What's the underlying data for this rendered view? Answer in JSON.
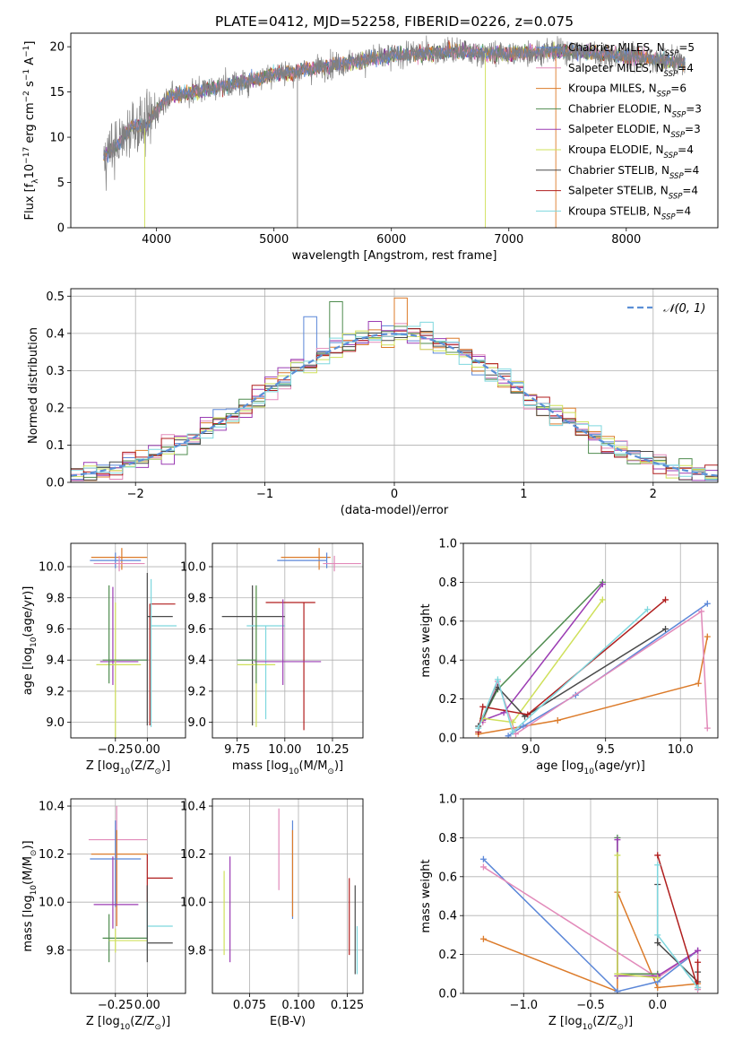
{
  "chart_data": [
    {
      "id": "spectrum",
      "type": "line",
      "title": "PLATE=0412, MJD=52258, FIBERID=0226, z=0.075",
      "xlabel": "wavelength [Angstrom, rest frame]",
      "ylabel": "Flux [f_λ10^-17 erg cm^-2 s^-1 A^-1]",
      "xlim": [
        3270,
        8780
      ],
      "ylim": [
        0,
        21.5
      ],
      "xticks": [
        4000,
        5000,
        6000,
        7000,
        8000
      ],
      "yticks": [
        0,
        5,
        10,
        15,
        20
      ],
      "legend_position": "right",
      "legend": [
        {
          "label": "Chabrier MILES",
          "nssp": "5",
          "color": "#5b87d8"
        },
        {
          "label": "Salpeter MILES",
          "nssp": "4",
          "color": "#e28aba"
        },
        {
          "label": "Kroupa MILES",
          "nssp": "6",
          "color": "#dc7b2a"
        },
        {
          "label": "Chabrier ELODIE",
          "nssp": "3",
          "color": "#4f8c4f"
        },
        {
          "label": "Salpeter ELODIE",
          "nssp": "3",
          "color": "#9b3cb3"
        },
        {
          "label": "Kroupa ELODIE",
          "nssp": "4",
          "color": "#cfe05a"
        },
        {
          "label": "Chabrier STELIB",
          "nssp": "4",
          "color": "#4a4a4a"
        },
        {
          "label": "Salpeter STELIB",
          "nssp": "4",
          "color": "#b01e1e"
        },
        {
          "label": "Kroupa STELIB",
          "nssp": "4",
          "color": "#7ed7de"
        }
      ],
      "continuum": {
        "x": [
          3550,
          3700,
          3800,
          3900,
          4000,
          4100,
          4300,
          4500,
          4700,
          5000,
          5200,
          5500,
          6000,
          6500,
          7000,
          7400,
          7500,
          8000,
          8500
        ],
        "y": [
          8.0,
          9.5,
          11.5,
          11.0,
          13.0,
          14.5,
          15.0,
          15.5,
          16.0,
          17.0,
          17.3,
          18.0,
          19.0,
          19.5,
          19.2,
          19.5,
          19.5,
          19.0,
          18.2
        ]
      },
      "data_color": "#808080"
    },
    {
      "id": "residuals",
      "type": "step",
      "xlabel": "(data-model)/error",
      "ylabel": "Normed distribution",
      "xlim": [
        -2.5,
        2.5
      ],
      "ylim": [
        0,
        0.52
      ],
      "xticks": [
        -2,
        -1,
        0,
        1,
        2
      ],
      "yticks": [
        0.0,
        0.1,
        0.2,
        0.3,
        0.4,
        0.5
      ],
      "grid": true,
      "legend_position": "top-right",
      "gaussian_label": "𝒩(0, 1)",
      "gaussian_color": "#5b8fd6",
      "bin_width": 0.1,
      "peak_values": [
        {
          "x": 0.05,
          "y": 0.495,
          "color": "#dc7b2a"
        },
        {
          "x": -0.45,
          "y": 0.485,
          "color": "#4f8c4f"
        },
        {
          "x": -0.65,
          "y": 0.445,
          "color": "#5b87d8"
        },
        {
          "x": 0.25,
          "y": 0.43,
          "color": "#7ed7de"
        }
      ]
    },
    {
      "id": "age_vs_Z",
      "type": "errorbar",
      "xlabel": "Z [log10(Z/Z⊙)]",
      "ylabel": "age  [log10(age/yr)]",
      "xlim": [
        -0.6,
        0.3
      ],
      "ylim": [
        8.9,
        10.15
      ],
      "xticks": [
        -0.25,
        0.0
      ],
      "yticks": [
        9.0,
        9.2,
        9.4,
        9.6,
        9.8,
        10.0
      ],
      "grid": true,
      "points": [
        {
          "x": -0.2,
          "xerr": [
            0.24,
            0.2
          ],
          "y": 10.06,
          "yerr": [
            0.08,
            0.06
          ],
          "color": "#dc7b2a"
        },
        {
          "x": -0.25,
          "xerr": [
            0.2,
            0.2
          ],
          "y": 10.04,
          "yerr": [
            0.05,
            0.05
          ],
          "color": "#5b87d8"
        },
        {
          "x": -0.22,
          "xerr": [
            0.2,
            0.2
          ],
          "y": 10.02,
          "yerr": [
            0.05,
            0.05
          ],
          "color": "#e28aba"
        },
        {
          "x": -0.27,
          "xerr": [
            0.1,
            0.2
          ],
          "y": 9.39,
          "yerr": [
            0.15,
            0.48
          ],
          "color": "#9b3cb3"
        },
        {
          "x": -0.25,
          "xerr": [
            0.15,
            0.2
          ],
          "y": 9.37,
          "yerr": [
            0.6,
            0.4
          ],
          "color": "#cfe05a"
        },
        {
          "x": -0.3,
          "xerr": [
            0.05,
            0.3
          ],
          "y": 9.4,
          "yerr": [
            0.15,
            0.48
          ],
          "color": "#4f8c4f"
        },
        {
          "x": 0.02,
          "xerr": [
            0.0,
            0.2
          ],
          "y": 9.76,
          "yerr": [
            0.78,
            0.0
          ],
          "color": "#b01e1e"
        },
        {
          "x": 0.0,
          "xerr": [
            0.0,
            0.2
          ],
          "y": 9.68,
          "yerr": [
            0.7,
            0.28
          ],
          "color": "#4a4a4a"
        },
        {
          "x": 0.03,
          "xerr": [
            0.0,
            0.2
          ],
          "y": 9.62,
          "yerr": [
            0.65,
            0.3
          ],
          "color": "#7ed7de"
        }
      ]
    },
    {
      "id": "age_vs_mass",
      "type": "errorbar",
      "xlabel": "mass [log10(M/M⊙)]",
      "xlim": [
        9.62,
        10.41
      ],
      "ylim": [
        8.9,
        10.15
      ],
      "xticks": [
        9.75,
        10.0,
        10.25
      ],
      "yticks": [
        9.0,
        9.2,
        9.4,
        9.6,
        9.8,
        10.0
      ],
      "grid": true,
      "points": [
        {
          "x": 10.18,
          "xerr": [
            0.2,
            0.06
          ],
          "y": 10.06,
          "yerr": [
            0.08,
            0.06
          ],
          "color": "#dc7b2a"
        },
        {
          "x": 10.22,
          "xerr": [
            0.26,
            0.0
          ],
          "y": 10.04,
          "yerr": [
            0.05,
            0.05
          ],
          "color": "#5b87d8"
        },
        {
          "x": 10.26,
          "xerr": [
            0.06,
            0.14
          ],
          "y": 10.02,
          "yerr": [
            0.05,
            0.05
          ],
          "color": "#e28aba"
        },
        {
          "x": 10.1,
          "xerr": [
            0.2,
            0.06
          ],
          "y": 9.77,
          "yerr": [
            0.82,
            0.0
          ],
          "color": "#b01e1e"
        },
        {
          "x": 9.83,
          "xerr": [
            0.16,
            0.17
          ],
          "y": 9.68,
          "yerr": [
            0.7,
            0.2
          ],
          "color": "#4a4a4a"
        },
        {
          "x": 9.9,
          "xerr": [
            0.1,
            0.1
          ],
          "y": 9.62,
          "yerr": [
            0.6,
            0.0
          ],
          "color": "#7ed7de"
        },
        {
          "x": 9.99,
          "xerr": [
            0.15,
            0.2
          ],
          "y": 9.39,
          "yerr": [
            0.15,
            0.4
          ],
          "color": "#9b3cb3"
        },
        {
          "x": 9.85,
          "xerr": [
            0.1,
            0.1
          ],
          "y": 9.37,
          "yerr": [
            0.4,
            0.5
          ],
          "color": "#cfe05a"
        },
        {
          "x": 9.85,
          "xerr": [
            0.1,
            0.0
          ],
          "y": 9.4,
          "yerr": [
            0.15,
            0.48
          ],
          "color": "#4f8c4f"
        }
      ]
    },
    {
      "id": "mass_weight_vs_age",
      "type": "line",
      "xlabel": "age  [log10(age/yr)]",
      "ylabel": "mass weight",
      "xlim": [
        8.55,
        10.25
      ],
      "ylim": [
        0,
        1.0
      ],
      "xticks": [
        9.0,
        9.5,
        10.0
      ],
      "yticks": [
        0.0,
        0.2,
        0.4,
        0.6,
        0.8,
        1.0
      ],
      "grid": true,
      "series": [
        {
          "color": "#dc7b2a",
          "x": [
            8.65,
            9.18,
            10.12,
            10.18
          ],
          "y": [
            0.02,
            0.09,
            0.28,
            0.52
          ]
        },
        {
          "color": "#5b87d8",
          "x": [
            8.85,
            8.95,
            9.3,
            10.18
          ],
          "y": [
            0.01,
            0.06,
            0.22,
            0.69
          ]
        },
        {
          "color": "#e28aba",
          "x": [
            8.68,
            8.78,
            8.9,
            10.14,
            10.18
          ],
          "y": [
            0.08,
            0.29,
            0.02,
            0.65,
            0.05
          ]
        },
        {
          "color": "#4f8c4f",
          "x": [
            8.68,
            8.78,
            9.48
          ],
          "y": [
            0.1,
            0.25,
            0.8
          ]
        },
        {
          "color": "#9b3cb3",
          "x": [
            8.68,
            8.82,
            9.48
          ],
          "y": [
            0.09,
            0.13,
            0.79
          ]
        },
        {
          "color": "#cfe05a",
          "x": [
            8.68,
            8.88,
            9.48
          ],
          "y": [
            0.1,
            0.08,
            0.71
          ]
        },
        {
          "color": "#4a4a4a",
          "x": [
            8.65,
            8.78,
            8.96,
            9.9
          ],
          "y": [
            0.06,
            0.26,
            0.11,
            0.56
          ]
        },
        {
          "color": "#b01e1e",
          "x": [
            8.65,
            8.68,
            8.98,
            9.9
          ],
          "y": [
            0.03,
            0.16,
            0.12,
            0.71
          ]
        },
        {
          "color": "#7ed7de",
          "x": [
            8.65,
            8.78,
            8.88,
            9.78
          ],
          "y": [
            0.05,
            0.3,
            0.03,
            0.66
          ]
        }
      ]
    },
    {
      "id": "mass_vs_Z",
      "type": "errorbar",
      "xlabel": "Z [log10(Z/Z⊙)]",
      "ylabel": "mass [log10(M/M⊙)]",
      "xlim": [
        -0.6,
        0.3
      ],
      "ylim": [
        9.62,
        10.43
      ],
      "xticks": [
        -0.25,
        0.0
      ],
      "yticks": [
        9.8,
        10.0,
        10.2,
        10.4
      ],
      "grid": true,
      "points": [
        {
          "x": -0.24,
          "xerr": [
            0.22,
            0.24
          ],
          "y": 10.26,
          "yerr": [
            0.36,
            0.14
          ],
          "color": "#e28aba"
        },
        {
          "x": -0.24,
          "xerr": [
            0.2,
            0.24
          ],
          "y": 10.2,
          "yerr": [
            0.3,
            0.1
          ],
          "color": "#dc7b2a"
        },
        {
          "x": -0.25,
          "xerr": [
            0.2,
            0.2
          ],
          "y": 10.18,
          "yerr": [
            0.2,
            0.16
          ],
          "color": "#5b87d8"
        },
        {
          "x": 0.0,
          "xerr": [
            0.0,
            0.2
          ],
          "y": 10.1,
          "yerr": [
            0.1,
            0.1
          ],
          "color": "#b01e1e"
        },
        {
          "x": -0.27,
          "xerr": [
            0.15,
            0.2
          ],
          "y": 9.99,
          "yerr": [
            0.1,
            0.2
          ],
          "color": "#9b3cb3"
        },
        {
          "x": 0.0,
          "xerr": [
            0.0,
            0.2
          ],
          "y": 9.9,
          "yerr": [
            0.1,
            0.1
          ],
          "color": "#7ed7de"
        },
        {
          "x": -0.3,
          "xerr": [
            0.05,
            0.3
          ],
          "y": 9.85,
          "yerr": [
            0.1,
            0.1
          ],
          "color": "#4f8c4f"
        },
        {
          "x": -0.25,
          "xerr": [
            0.05,
            0.25
          ],
          "y": 9.84,
          "yerr": [
            0.05,
            0.05
          ],
          "color": "#cfe05a"
        },
        {
          "x": 0.0,
          "xerr": [
            0.0,
            0.2
          ],
          "y": 9.83,
          "yerr": [
            0.08,
            0.24
          ],
          "color": "#4a4a4a"
        }
      ]
    },
    {
      "id": "mass_vs_EBV",
      "type": "errorbar",
      "xlabel": "E(B-V)",
      "xlim": [
        0.056,
        0.133
      ],
      "ylim": [
        9.62,
        10.43
      ],
      "xticks": [
        0.075,
        0.1,
        0.125
      ],
      "yticks": [
        9.8,
        10.0,
        10.2,
        10.4
      ],
      "grid": true,
      "points": [
        {
          "x": 0.062,
          "y": 9.95,
          "yerr": [
            0.17,
            0.18
          ],
          "color": "#cfe05a"
        },
        {
          "x": 0.065,
          "y": 9.97,
          "yerr": [
            0.22,
            0.22
          ],
          "color": "#9b3cb3"
        },
        {
          "x": 0.09,
          "y": 10.22,
          "yerr": [
            0.17,
            0.17
          ],
          "color": "#e28aba"
        },
        {
          "x": 0.097,
          "y": 10.14,
          "yerr": [
            0.21,
            0.2
          ],
          "color": "#5b87d8"
        },
        {
          "x": 0.097,
          "y": 10.11,
          "yerr": [
            0.17,
            0.19
          ],
          "color": "#dc7b2a"
        },
        {
          "x": 0.126,
          "y": 9.93,
          "yerr": [
            0.15,
            0.17
          ],
          "color": "#b01e1e"
        },
        {
          "x": 0.129,
          "y": 9.88,
          "yerr": [
            0.18,
            0.19
          ],
          "color": "#4a4a4a"
        },
        {
          "x": 0.13,
          "y": 9.8,
          "yerr": [
            0.1,
            0.1
          ],
          "color": "#7ed7de"
        }
      ]
    },
    {
      "id": "mass_weight_vs_Z",
      "type": "line",
      "xlabel": "Z [log10(Z/Z⊙)]",
      "ylabel": "mass weight",
      "xlim": [
        -1.45,
        0.45
      ],
      "ylim": [
        0,
        1.0
      ],
      "xticks": [
        -1.0,
        -0.5,
        0.0
      ],
      "yticks": [
        0.0,
        0.2,
        0.4,
        0.6,
        0.8,
        1.0
      ],
      "grid": true,
      "series": [
        {
          "color": "#dc7b2a",
          "x": [
            -1.3,
            -0.3,
            -0.3,
            0.0,
            0.3
          ],
          "y": [
            0.28,
            0.01,
            0.52,
            0.03,
            0.05
          ]
        },
        {
          "color": "#5b87d8",
          "x": [
            -1.3,
            -0.3,
            0.0,
            0.3
          ],
          "y": [
            0.69,
            0.01,
            0.06,
            0.22
          ]
        },
        {
          "color": "#e28aba",
          "x": [
            -1.3,
            0.0,
            0.3,
            0.3
          ],
          "y": [
            0.65,
            0.08,
            0.22,
            0.02
          ]
        },
        {
          "color": "#4f8c4f",
          "x": [
            -0.3,
            -0.3,
            0.0
          ],
          "y": [
            0.8,
            0.1,
            0.1
          ]
        },
        {
          "color": "#9b3cb3",
          "x": [
            -0.3,
            -0.3,
            0.0,
            0.3
          ],
          "y": [
            0.79,
            0.09,
            0.09,
            0.22
          ]
        },
        {
          "color": "#cfe05a",
          "x": [
            -0.3,
            -0.3,
            0.0
          ],
          "y": [
            0.71,
            0.1,
            0.08
          ]
        },
        {
          "color": "#4a4a4a",
          "x": [
            0.0,
            0.0,
            0.3,
            0.3
          ],
          "y": [
            0.56,
            0.26,
            0.06,
            0.11
          ]
        },
        {
          "color": "#b01e1e",
          "x": [
            0.0,
            0.3,
            0.3
          ],
          "y": [
            0.71,
            0.03,
            0.16
          ]
        },
        {
          "color": "#7ed7de",
          "x": [
            0.0,
            0.0,
            0.3
          ],
          "y": [
            0.66,
            0.3,
            0.03
          ]
        }
      ]
    }
  ]
}
